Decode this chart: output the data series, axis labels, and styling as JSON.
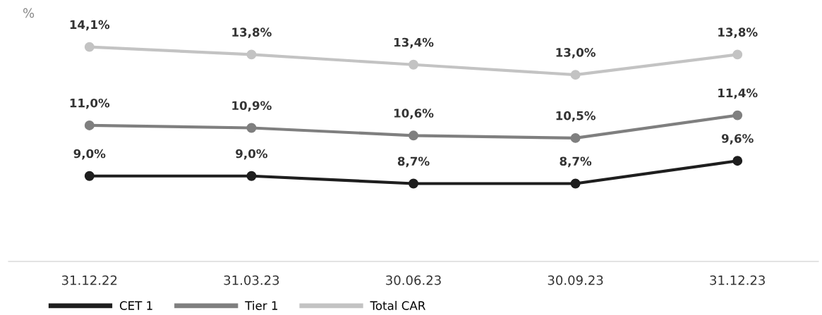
{
  "chart_data": {
    "type": "line",
    "ylabel": "%",
    "categories": [
      "31.12.22",
      "31.03.23",
      "30.06.23",
      "30.09.23",
      "31.12.23"
    ],
    "series": [
      {
        "name": "CET 1",
        "color": "#1e1e1e",
        "values": [
          9.0,
          9.0,
          8.7,
          8.7,
          9.6
        ],
        "value_labels": [
          "9,0%",
          "9,0%",
          "8,7%",
          "8,7%",
          "9,6%"
        ]
      },
      {
        "name": "Tier 1",
        "color": "#7f7f7f",
        "values": [
          11.0,
          10.9,
          10.6,
          10.5,
          11.4
        ],
        "value_labels": [
          "11,0%",
          "10,9%",
          "10,6%",
          "10,5%",
          "11,4%"
        ]
      },
      {
        "name": "Total CAR",
        "color": "#c3c3c3",
        "values": [
          14.1,
          13.8,
          13.4,
          13.0,
          13.8
        ],
        "value_labels": [
          "14,1%",
          "13,8%",
          "13,4%",
          "13,0%",
          "13,8%"
        ]
      }
    ],
    "tick_labels": "x",
    "marker": "circle",
    "line_style": "solid",
    "legend": "bottom",
    "grid": false
  }
}
